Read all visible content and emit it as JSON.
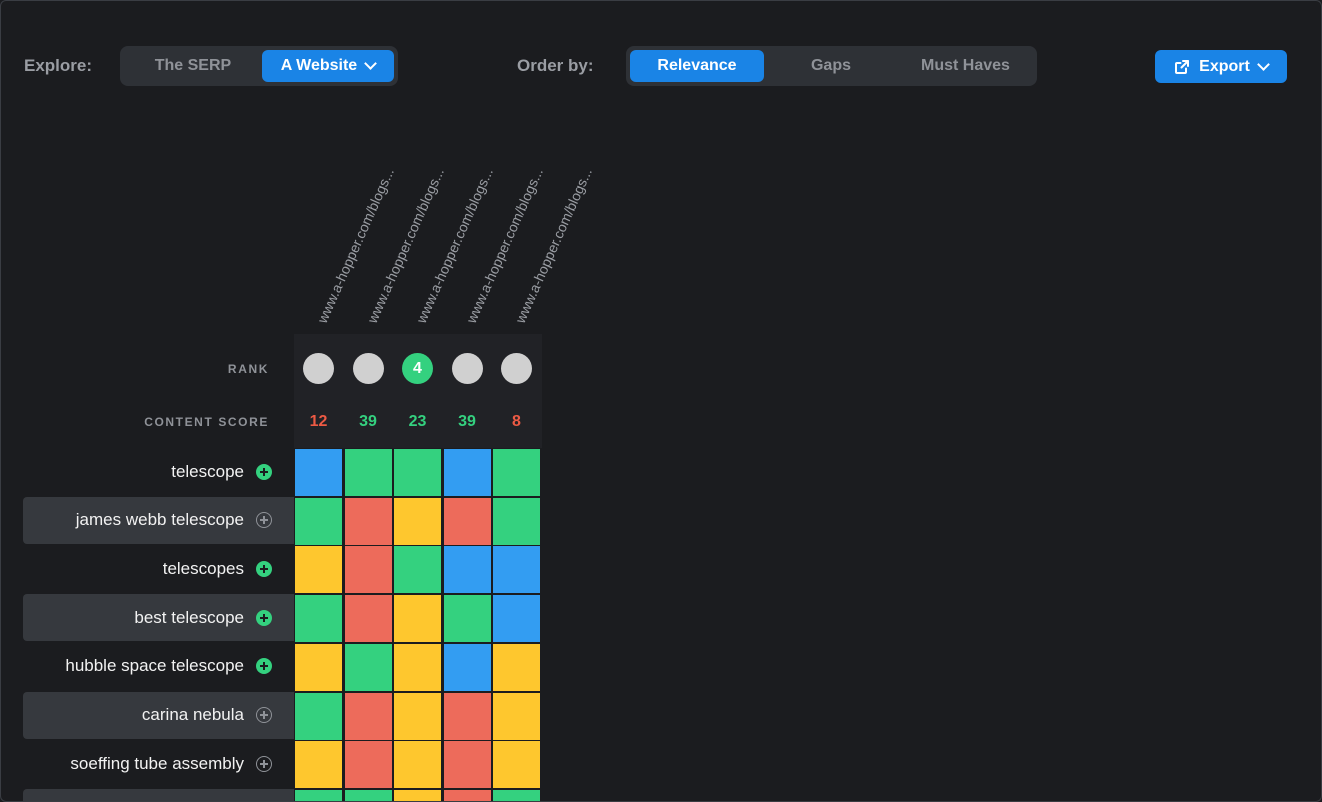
{
  "toolbar": {
    "explore_label": "Explore:",
    "explore_options": [
      "The SERP",
      "A Website"
    ],
    "explore_active": 1,
    "order_label": "Order by:",
    "order_options": [
      "Relevance",
      "Gaps",
      "Must Haves"
    ],
    "order_active": 0,
    "export_label": "Export"
  },
  "colors": {
    "green": "#34d17f",
    "blue": "#339df2",
    "yellow": "#fec72e",
    "red": "#ed6b5b",
    "score_low": "#ed5a44",
    "score_high": "#34d17f"
  },
  "columns": [
    {
      "url": "www.a-hopper.com/blogs...",
      "rank": "",
      "score": "12",
      "score_level": "low"
    },
    {
      "url": "www.a-hopper.com/blogs...",
      "rank": "",
      "score": "39",
      "score_level": "high"
    },
    {
      "url": "www.a-hopper.com/blogs...",
      "rank": "4",
      "score": "23",
      "score_level": "high"
    },
    {
      "url": "www.a-hopper.com/blogs...",
      "rank": "",
      "score": "39",
      "score_level": "high"
    },
    {
      "url": "www.a-hopper.com/blogs...",
      "rank": "",
      "score": "8",
      "score_level": "low"
    }
  ],
  "row_labels": {
    "rank": "RANK",
    "content_score": "CONTENT SCORE"
  },
  "keywords": [
    {
      "term": "telescope",
      "added": true,
      "cells": [
        "blue",
        "green",
        "green",
        "blue",
        "green"
      ]
    },
    {
      "term": "james webb telescope",
      "added": false,
      "cells": [
        "green",
        "red",
        "yellow",
        "red",
        "green"
      ]
    },
    {
      "term": "telescopes",
      "added": true,
      "cells": [
        "yellow",
        "red",
        "green",
        "blue",
        "blue"
      ]
    },
    {
      "term": "best telescope",
      "added": true,
      "cells": [
        "green",
        "red",
        "yellow",
        "green",
        "blue"
      ]
    },
    {
      "term": "hubble space telescope",
      "added": true,
      "cells": [
        "yellow",
        "green",
        "yellow",
        "blue",
        "yellow"
      ]
    },
    {
      "term": "carina nebula",
      "added": false,
      "cells": [
        "green",
        "red",
        "yellow",
        "red",
        "yellow"
      ]
    },
    {
      "term": "soeffing tube assembly",
      "added": false,
      "cells": [
        "yellow",
        "red",
        "yellow",
        "red",
        "yellow"
      ]
    },
    {
      "term": "",
      "added": false,
      "cells": [
        "green",
        "green",
        "yellow",
        "red",
        "green"
      ]
    }
  ]
}
